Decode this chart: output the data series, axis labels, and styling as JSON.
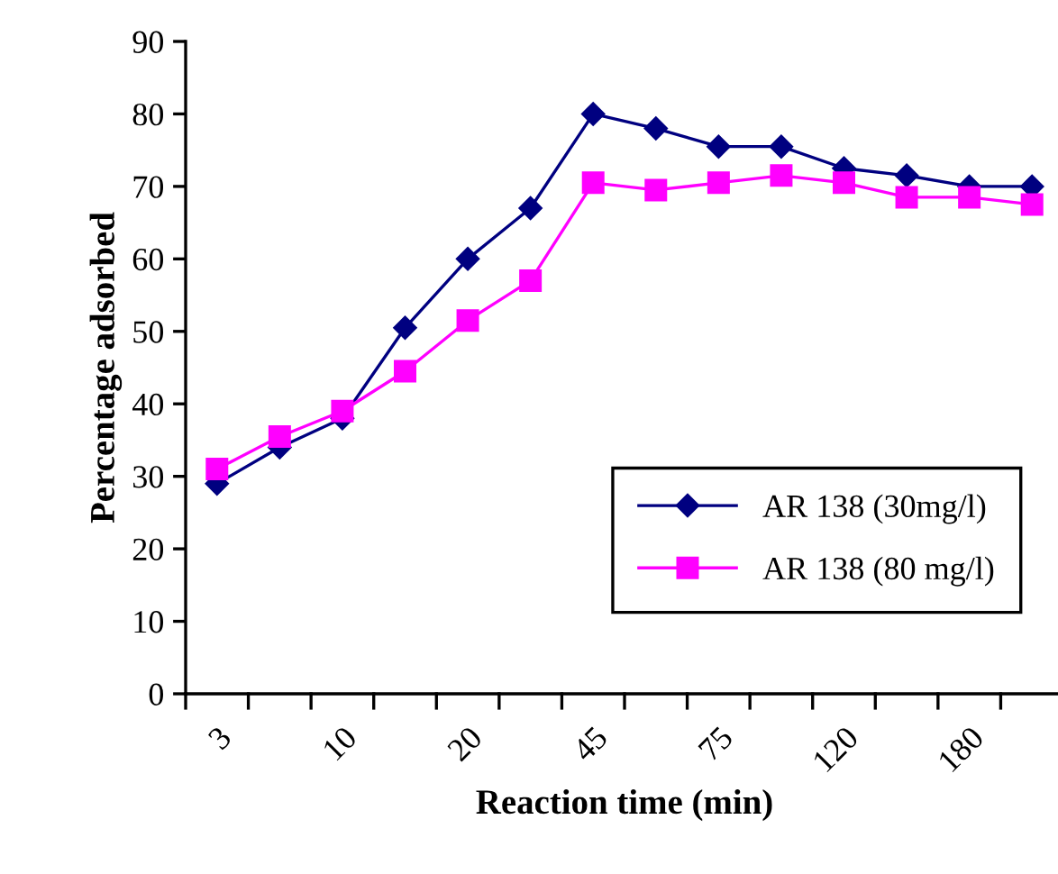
{
  "chart_data": {
    "type": "line",
    "xlabel": "Reaction time (min)",
    "ylabel": "Percentage adsorbed",
    "categories": [
      "3",
      null,
      "10",
      null,
      "20",
      null,
      "45",
      null,
      "75",
      null,
      "120",
      null,
      "180",
      null
    ],
    "series": [
      {
        "name": "AR 138 (30mg/l)",
        "color": "#000080",
        "marker": "diamond",
        "values": [
          29,
          34,
          38,
          50.5,
          60,
          67,
          80,
          78,
          75.5,
          75.5,
          72.5,
          71.5,
          70,
          70
        ]
      },
      {
        "name": "AR 138 (80 mg/l)",
        "color": "#ff00ff",
        "marker": "square",
        "values": [
          31,
          35.5,
          39,
          44.5,
          51.5,
          57,
          70.5,
          69.5,
          70.5,
          71.5,
          70.5,
          68.5,
          68.5,
          67.5
        ]
      }
    ],
    "ylim": [
      0,
      90
    ],
    "yticks": [
      0,
      10,
      20,
      30,
      40,
      50,
      60,
      70,
      80,
      90
    ],
    "grid": false,
    "legend": "bottom right",
    "line_style": "solid"
  }
}
